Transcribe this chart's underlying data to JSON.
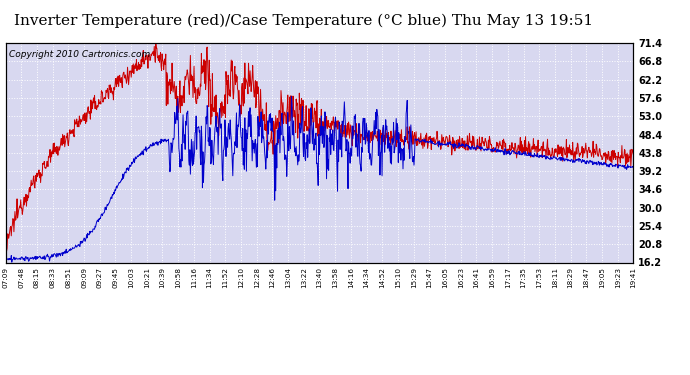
{
  "title": "Inverter Temperature (red)/Case Temperature (°C blue) Thu May 13 19:51",
  "copyright": "Copyright 2010 Cartronics.com",
  "y_ticks": [
    16.2,
    20.8,
    25.4,
    30.0,
    34.6,
    39.2,
    43.8,
    48.4,
    53.0,
    57.6,
    62.2,
    66.8,
    71.4
  ],
  "ylim": [
    16.2,
    71.4
  ],
  "x_labels": [
    "07:09",
    "07:48",
    "08:15",
    "08:33",
    "08:51",
    "09:09",
    "09:27",
    "09:45",
    "10:03",
    "10:21",
    "10:39",
    "10:58",
    "11:16",
    "11:34",
    "11:52",
    "12:10",
    "12:28",
    "12:46",
    "13:04",
    "13:22",
    "13:40",
    "13:58",
    "14:16",
    "14:34",
    "14:52",
    "15:10",
    "15:29",
    "15:47",
    "16:05",
    "16:23",
    "16:41",
    "16:59",
    "17:17",
    "17:35",
    "17:53",
    "18:11",
    "18:29",
    "18:47",
    "19:05",
    "19:23",
    "19:41"
  ],
  "background_color": "#ffffff",
  "plot_bg_color": "#d8d8f0",
  "grid_color": "#ffffff",
  "red_color": "#cc0000",
  "blue_color": "#0000cc",
  "title_fontsize": 11,
  "copyright_fontsize": 6.5,
  "total_minutes": 752
}
